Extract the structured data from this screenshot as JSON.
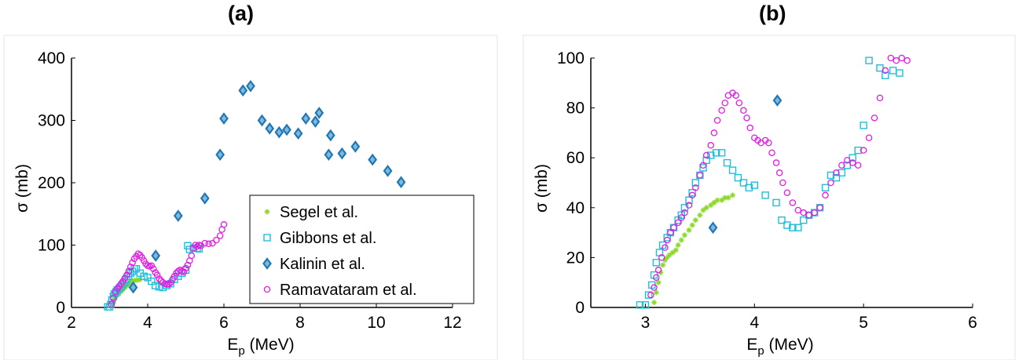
{
  "panels": {
    "a": {
      "label": "(a)"
    },
    "b": {
      "label": "(b)"
    }
  },
  "colors": {
    "segel": "#8bd82b",
    "gibbons": "#1fbfd8",
    "kalinin": "#1f78b4",
    "ramavataram": "#e01ee0"
  },
  "chart_data": [
    {
      "type": "scatter",
      "title": "(a)",
      "xlabel": "E_p (MeV)",
      "ylabel": "σ (mb)",
      "xlim": [
        2,
        12
      ],
      "ylim": [
        0,
        400
      ],
      "xticks": [
        2,
        4,
        6,
        8,
        10,
        12
      ],
      "yticks": [
        0,
        100,
        200,
        300,
        400
      ],
      "grid": false,
      "legend": "bottom-right",
      "series": [
        {
          "name": "Segel et al.",
          "marker": "asterisk",
          "x": [
            3.08,
            3.12,
            3.16,
            3.2,
            3.25,
            3.3,
            3.35,
            3.4,
            3.45,
            3.5,
            3.55,
            3.6,
            3.65,
            3.7,
            3.75,
            3.8
          ],
          "y": [
            5,
            12,
            18,
            20,
            22,
            26,
            29,
            32,
            35,
            38,
            40,
            42,
            43,
            44,
            44,
            45
          ]
        },
        {
          "name": "Gibbons et al.",
          "marker": "square",
          "x": [
            2.95,
            3.0,
            3.03,
            3.06,
            3.1,
            3.13,
            3.17,
            3.2,
            3.25,
            3.3,
            3.35,
            3.4,
            3.45,
            3.5,
            3.55,
            3.6,
            3.65,
            3.7,
            3.8,
            3.9,
            4.0,
            4.1,
            4.2,
            4.3,
            4.4,
            4.5,
            4.6,
            4.7,
            4.8,
            4.9,
            5.0,
            5.05,
            5.1,
            5.2,
            5.3,
            5.35
          ],
          "y": [
            1,
            1,
            5,
            12,
            18,
            22,
            25,
            28,
            30,
            33,
            37,
            40,
            45,
            50,
            55,
            58,
            62,
            62,
            55,
            50,
            48,
            42,
            35,
            33,
            32,
            35,
            38,
            45,
            50,
            55,
            60,
            99,
            93,
            95,
            95,
            94
          ]
        },
        {
          "name": "Kalinin et al.",
          "marker": "diamond",
          "x": [
            3.62,
            4.21,
            4.8,
            5.5,
            5.9,
            6.0,
            6.5,
            6.7,
            7.0,
            7.2,
            7.45,
            7.65,
            7.95,
            8.15,
            8.4,
            8.5,
            8.75,
            8.8,
            9.1,
            9.45,
            9.9,
            10.3,
            10.65
          ],
          "y": [
            32,
            83,
            147,
            175,
            245,
            303,
            348,
            355,
            300,
            287,
            281,
            285,
            279,
            303,
            298,
            312,
            245,
            276,
            247,
            258,
            237,
            219,
            201
          ]
        },
        {
          "name": "Ramavataram et al.",
          "marker": "circle",
          "x": [
            3.05,
            3.1,
            3.15,
            3.2,
            3.25,
            3.3,
            3.35,
            3.4,
            3.45,
            3.5,
            3.55,
            3.6,
            3.65,
            3.7,
            3.75,
            3.8,
            3.85,
            3.9,
            3.95,
            4.0,
            4.05,
            4.1,
            4.15,
            4.2,
            4.25,
            4.3,
            4.35,
            4.4,
            4.45,
            4.5,
            4.55,
            4.6,
            4.65,
            4.7,
            4.75,
            4.8,
            4.85,
            4.9,
            4.95,
            5.0,
            5.05,
            5.1,
            5.15,
            5.2,
            5.25,
            5.3,
            5.35,
            5.4,
            5.5,
            5.6,
            5.7,
            5.8,
            5.9,
            5.95,
            6.0
          ],
          "y": [
            5,
            15,
            25,
            30,
            34,
            38,
            42,
            47,
            52,
            58,
            65,
            72,
            78,
            82,
            86,
            84,
            80,
            75,
            70,
            67,
            66,
            67,
            62,
            56,
            52,
            46,
            43,
            40,
            38,
            37,
            37,
            40,
            45,
            50,
            55,
            58,
            60,
            58,
            57,
            63,
            68,
            75,
            83,
            95,
            100,
            98,
            100,
            99,
            103,
            102,
            103,
            108,
            115,
            125,
            133
          ]
        }
      ]
    },
    {
      "type": "scatter",
      "title": "(b)",
      "xlabel": "E_p (MeV)",
      "ylabel": "σ (mb)",
      "xlim": [
        2.5,
        6
      ],
      "ylim": [
        0,
        100
      ],
      "xticks": [
        3,
        4,
        5,
        6
      ],
      "yticks": [
        0,
        20,
        40,
        60,
        80,
        100
      ],
      "grid": false,
      "series": [
        {
          "name": "Segel et al.",
          "marker": "asterisk",
          "x": [
            3.08,
            3.1,
            3.12,
            3.14,
            3.16,
            3.18,
            3.2,
            3.22,
            3.25,
            3.28,
            3.3,
            3.33,
            3.36,
            3.4,
            3.43,
            3.46,
            3.5,
            3.53,
            3.56,
            3.6,
            3.63,
            3.66,
            3.7,
            3.73,
            3.76,
            3.8
          ],
          "y": [
            2,
            6,
            10,
            14,
            17,
            19,
            20,
            21,
            22,
            23,
            25,
            27,
            29,
            31,
            33,
            35,
            37,
            39,
            40,
            41,
            42,
            43,
            43,
            44,
            44,
            45
          ]
        },
        {
          "name": "Gibbons et al.",
          "marker": "square",
          "x": [
            2.95,
            3.0,
            3.03,
            3.06,
            3.08,
            3.1,
            3.13,
            3.16,
            3.2,
            3.23,
            3.26,
            3.3,
            3.33,
            3.36,
            3.4,
            3.43,
            3.46,
            3.5,
            3.53,
            3.56,
            3.6,
            3.65,
            3.7,
            3.75,
            3.8,
            3.85,
            3.9,
            3.95,
            4.0,
            4.1,
            4.2,
            4.25,
            4.3,
            4.35,
            4.4,
            4.45,
            4.5,
            4.55,
            4.6,
            4.65,
            4.7,
            4.75,
            4.8,
            4.85,
            4.9,
            4.95,
            5.0,
            5.05,
            5.15,
            5.2,
            5.27,
            5.33
          ],
          "y": [
            1,
            1,
            5,
            9,
            13,
            18,
            22,
            25,
            28,
            30,
            32,
            35,
            37,
            40,
            43,
            46,
            50,
            53,
            56,
            59,
            61,
            62,
            62,
            58,
            55,
            52,
            50,
            48,
            49,
            45,
            42,
            35,
            33,
            32,
            32,
            35,
            37,
            38,
            40,
            48,
            53,
            52,
            54,
            57,
            60,
            63,
            73,
            99,
            96,
            93,
            95,
            94
          ]
        },
        {
          "name": "Kalinin et al.",
          "marker": "diamond",
          "x": [
            3.62,
            4.21
          ],
          "y": [
            32,
            83
          ]
        },
        {
          "name": "Ramavataram et al.",
          "marker": "circle",
          "x": [
            3.05,
            3.08,
            3.1,
            3.12,
            3.15,
            3.18,
            3.2,
            3.23,
            3.26,
            3.3,
            3.33,
            3.36,
            3.4,
            3.43,
            3.46,
            3.5,
            3.53,
            3.56,
            3.6,
            3.63,
            3.66,
            3.7,
            3.73,
            3.76,
            3.8,
            3.83,
            3.86,
            3.9,
            3.93,
            3.96,
            4.0,
            4.03,
            4.06,
            4.1,
            4.13,
            4.16,
            4.2,
            4.23,
            4.26,
            4.3,
            4.35,
            4.4,
            4.45,
            4.5,
            4.55,
            4.6,
            4.65,
            4.7,
            4.75,
            4.8,
            4.85,
            4.9,
            4.95,
            5.0,
            5.05,
            5.1,
            5.15,
            5.2,
            5.25,
            5.3,
            5.35,
            5.4
          ],
          "y": [
            5,
            8,
            12,
            15,
            20,
            24,
            27,
            30,
            32,
            34,
            36,
            38,
            41,
            45,
            48,
            53,
            57,
            61,
            65,
            70,
            75,
            79,
            82,
            85,
            86,
            85,
            82,
            79,
            76,
            72,
            68,
            67,
            66,
            67,
            66,
            62,
            58,
            54,
            50,
            46,
            42,
            39,
            38,
            37,
            38,
            40,
            45,
            50,
            54,
            57,
            59,
            58,
            57,
            63,
            68,
            76,
            84,
            95,
            100,
            99,
            100,
            99
          ]
        }
      ]
    }
  ]
}
